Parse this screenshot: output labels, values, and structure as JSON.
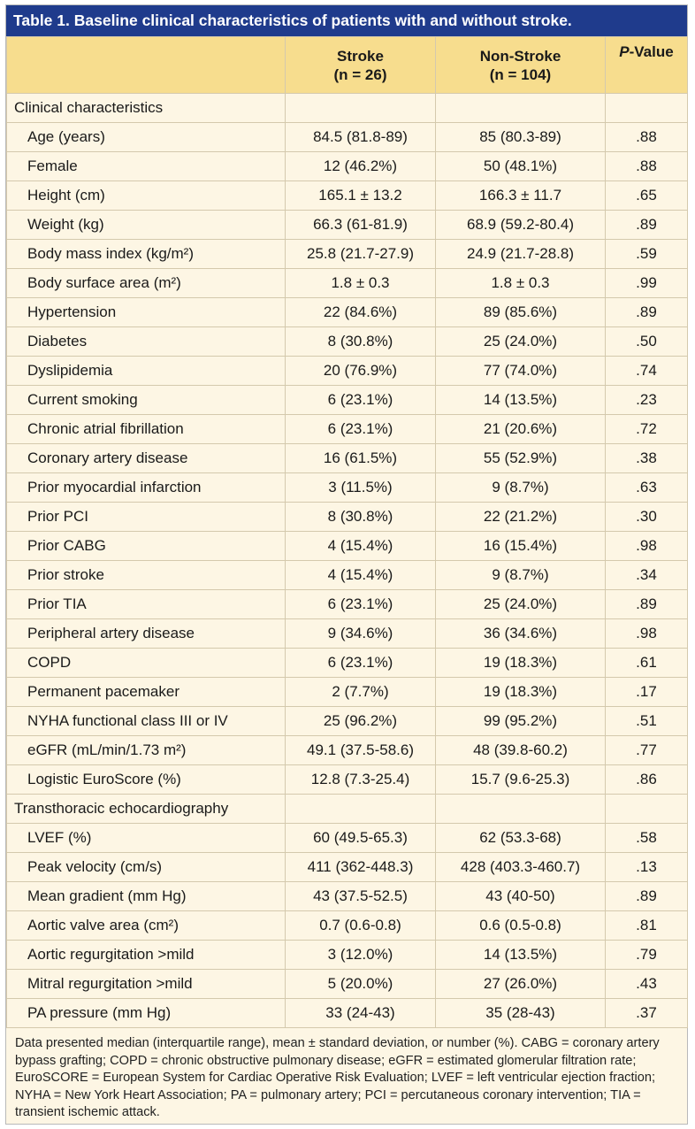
{
  "title": "Table 1. Baseline clinical characteristics of patients with and without stroke.",
  "headers": {
    "stroke_line1": "Stroke",
    "stroke_line2": "(n = 26)",
    "nonstroke_line1": "Non-Stroke",
    "nonstroke_line2": "(n = 104)",
    "pvalue_p": "P",
    "pvalue_rest": "-Value"
  },
  "rows": [
    {
      "type": "section",
      "label": "Clinical characteristics"
    },
    {
      "label": "Age (years)",
      "stroke": "84.5 (81.8-89)",
      "nonstroke": "85 (80.3-89)",
      "p": ".88"
    },
    {
      "label": "Female",
      "stroke": "12 (46.2%)",
      "nonstroke": "50 (48.1%)",
      "p": ".88"
    },
    {
      "label": "Height (cm)",
      "stroke": "165.1 ± 13.2",
      "nonstroke": "166.3 ± 11.7",
      "p": ".65"
    },
    {
      "label": "Weight (kg)",
      "stroke": "66.3 (61-81.9)",
      "nonstroke": "68.9 (59.2-80.4)",
      "p": ".89"
    },
    {
      "label": "Body mass index (kg/m²)",
      "stroke": "25.8 (21.7-27.9)",
      "nonstroke": "24.9 (21.7-28.8)",
      "p": ".59"
    },
    {
      "label": "Body surface area (m²)",
      "stroke": "1.8 ± 0.3",
      "nonstroke": "1.8 ± 0.3",
      "p": ".99"
    },
    {
      "label": "Hypertension",
      "stroke": "22 (84.6%)",
      "nonstroke": "89 (85.6%)",
      "p": ".89"
    },
    {
      "label": "Diabetes",
      "stroke": "8 (30.8%)",
      "nonstroke": "25 (24.0%)",
      "p": ".50"
    },
    {
      "label": "Dyslipidemia",
      "stroke": "20 (76.9%)",
      "nonstroke": "77 (74.0%)",
      "p": ".74"
    },
    {
      "label": "Current smoking",
      "stroke": "6 (23.1%)",
      "nonstroke": "14 (13.5%)",
      "p": ".23"
    },
    {
      "label": "Chronic atrial fibrillation",
      "stroke": "6 (23.1%)",
      "nonstroke": "21 (20.6%)",
      "p": ".72"
    },
    {
      "label": "Coronary artery disease",
      "stroke": "16 (61.5%)",
      "nonstroke": "55 (52.9%)",
      "p": ".38"
    },
    {
      "label": "Prior myocardial infarction",
      "stroke": "3 (11.5%)",
      "nonstroke": "9 (8.7%)",
      "p": ".63"
    },
    {
      "label": "Prior PCI",
      "stroke": "8 (30.8%)",
      "nonstroke": "22 (21.2%)",
      "p": ".30"
    },
    {
      "label": "Prior CABG",
      "stroke": "4 (15.4%)",
      "nonstroke": "16 (15.4%)",
      "p": ".98"
    },
    {
      "label": "Prior stroke",
      "stroke": "4 (15.4%)",
      "nonstroke": "9 (8.7%)",
      "p": ".34"
    },
    {
      "label": "Prior TIA",
      "stroke": "6 (23.1%)",
      "nonstroke": "25 (24.0%)",
      "p": ".89"
    },
    {
      "label": "Peripheral artery disease",
      "stroke": "9 (34.6%)",
      "nonstroke": "36 (34.6%)",
      "p": ".98"
    },
    {
      "label": "COPD",
      "stroke": "6 (23.1%)",
      "nonstroke": "19 (18.3%)",
      "p": ".61"
    },
    {
      "label": "Permanent pacemaker",
      "stroke": "2 (7.7%)",
      "nonstroke": "19 (18.3%)",
      "p": ".17"
    },
    {
      "label": "NYHA functional class III or IV",
      "stroke": "25 (96.2%)",
      "nonstroke": "99 (95.2%)",
      "p": ".51"
    },
    {
      "label": "eGFR (mL/min/1.73 m²)",
      "stroke": "49.1 (37.5-58.6)",
      "nonstroke": "48 (39.8-60.2)",
      "p": ".77"
    },
    {
      "label": "Logistic EuroScore (%)",
      "stroke": "12.8 (7.3-25.4)",
      "nonstroke": "15.7 (9.6-25.3)",
      "p": ".86"
    },
    {
      "type": "section",
      "label": "Transthoracic echocardiography"
    },
    {
      "label": "LVEF (%)",
      "stroke": "60 (49.5-65.3)",
      "nonstroke": "62 (53.3-68)",
      "p": ".58"
    },
    {
      "label": "Peak velocity (cm/s)",
      "stroke": "411 (362-448.3)",
      "nonstroke": "428 (403.3-460.7)",
      "p": ".13"
    },
    {
      "label": "Mean gradient (mm Hg)",
      "stroke": "43 (37.5-52.5)",
      "nonstroke": "43 (40-50)",
      "p": ".89"
    },
    {
      "label": "Aortic valve area (cm²)",
      "stroke": "0.7 (0.6-0.8)",
      "nonstroke": "0.6 (0.5-0.8)",
      "p": ".81"
    },
    {
      "label": "Aortic regurgitation >mild",
      "stroke": "3 (12.0%)",
      "nonstroke": "14 (13.5%)",
      "p": ".79"
    },
    {
      "label": "Mitral regurgitation >mild",
      "stroke": "5 (20.0%)",
      "nonstroke": "27 (26.0%)",
      "p": ".43"
    },
    {
      "label": "PA pressure (mm Hg)",
      "stroke": "33 (24-43)",
      "nonstroke": "35 (28-43)",
      "p": ".37"
    }
  ],
  "footnote": "Data presented median (interquartile range), mean ± standard deviation, or number (%). CABG = coronary artery bypass grafting; COPD = chronic obstructive pulmonary disease; eGFR = estimated glomerular filtration rate; EuroSCORE = European System for Cardiac Operative Risk Evaluation; LVEF = left ventricular ejection fraction; NYHA = New York Heart Association; PA = pulmonary artery; PCI = percutaneous coronary intervention; TIA = transient ischemic attack.",
  "colors": {
    "title_bg": "#1f3b8c",
    "header_bg": "#f7dd8e",
    "body_bg": "#fdf6e4",
    "border": "#d4c9ad"
  }
}
